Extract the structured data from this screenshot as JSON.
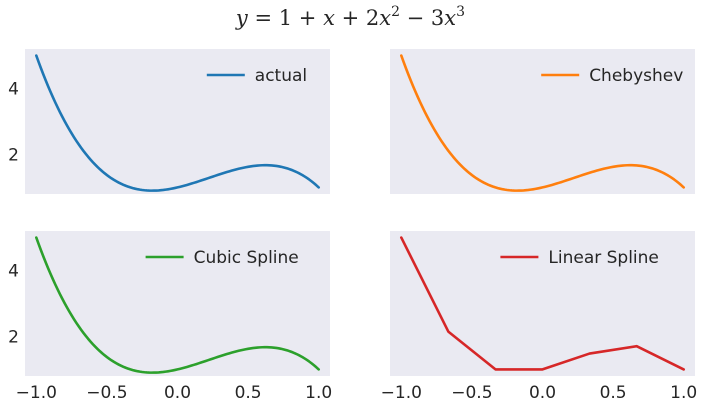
{
  "figure": {
    "title_parts": {
      "y": "y",
      "eq": " = 1 + ",
      "x1": "x",
      "plus2": " + 2",
      "x2": "x",
      "sup2": "2",
      "minus3": " − 3",
      "x3": "x",
      "sup3": "3"
    }
  },
  "chart_data": [
    {
      "type": "line",
      "series": [
        {
          "name": "actual",
          "color": "#1f77b4",
          "function": "1 + x + 2x^2 - 3x^3",
          "smooth": true
        }
      ],
      "xlim": [
        -1.08,
        1.08
      ],
      "ylim": [
        0.8,
        5.2
      ],
      "yticks": [
        2,
        4
      ],
      "xticks": [],
      "legend": "top-right",
      "grid": false
    },
    {
      "type": "line",
      "series": [
        {
          "name": "Chebyshev",
          "color": "#ff7f0e",
          "function": "1 + x + 2x^2 - 3x^3",
          "smooth": true
        }
      ],
      "xlim": [
        -1.08,
        1.08
      ],
      "ylim": [
        0.8,
        5.2
      ],
      "yticks": [],
      "xticks": [],
      "legend": "top-right",
      "grid": false
    },
    {
      "type": "line",
      "series": [
        {
          "name": "Cubic Spline",
          "color": "#2ca02c",
          "function": "1 + x + 2x^2 - 3x^3",
          "smooth": true
        }
      ],
      "xlim": [
        -1.08,
        1.08
      ],
      "ylim": [
        0.8,
        5.2
      ],
      "yticks": [
        2,
        4
      ],
      "xticks": [
        -1.0,
        -0.5,
        0.0,
        0.5,
        1.0
      ],
      "legend": "top-right",
      "grid": false
    },
    {
      "type": "line",
      "series": [
        {
          "name": "Linear Spline",
          "color": "#d62728",
          "x": [
            -1.0,
            -0.667,
            -0.333,
            0.0,
            0.333,
            0.667,
            1.0
          ],
          "y": [
            5.0,
            2.148,
            1.0,
            1.0,
            1.481,
            1.704,
            1.0
          ]
        }
      ],
      "xlim": [
        -1.08,
        1.08
      ],
      "ylim": [
        0.8,
        5.2
      ],
      "yticks": [],
      "xticks": [
        -1.0,
        -0.5,
        0.0,
        0.5,
        1.0
      ],
      "legend": "top-right",
      "grid": false
    }
  ],
  "tick_format": {
    "decimals_x": 1,
    "decimals_y": 0
  }
}
